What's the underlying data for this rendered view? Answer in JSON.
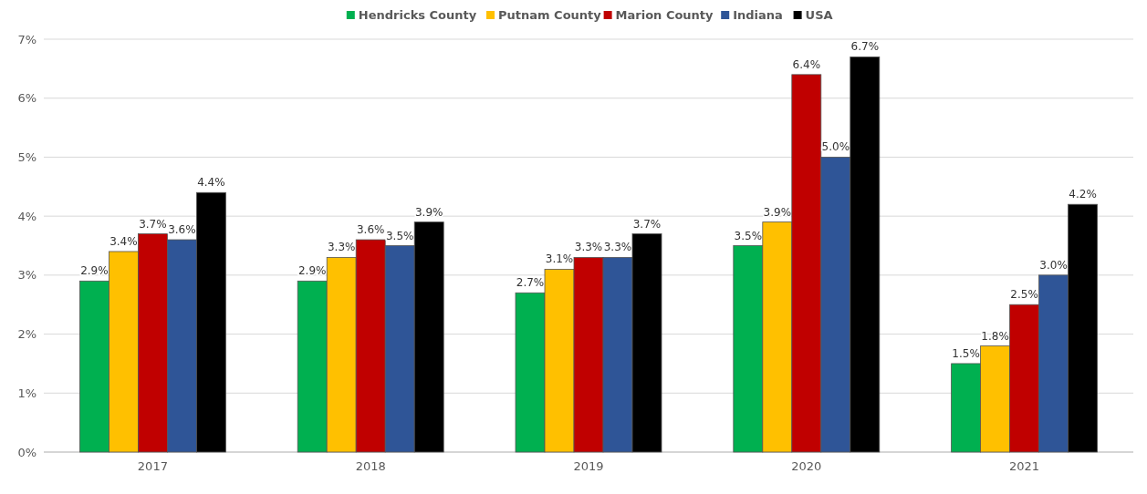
{
  "chart_data": {
    "type": "bar",
    "categories": [
      "2017",
      "2018",
      "2019",
      "2020",
      "2021"
    ],
    "series": [
      {
        "name": "Hendricks County",
        "color": "#00b050",
        "values": [
          2.9,
          2.9,
          2.7,
          3.5,
          1.5
        ],
        "value_labels": [
          "2.9%",
          "2.9%",
          "2.7%",
          "3.5%",
          "1.5%"
        ]
      },
      {
        "name": "Putnam County",
        "color": "#ffc000",
        "values": [
          3.4,
          3.3,
          3.1,
          3.9,
          1.8
        ],
        "value_labels": [
          "3.4%",
          "3.3%",
          "3.1%",
          "3.9%",
          "1.8%"
        ]
      },
      {
        "name": "Marion County",
        "color": "#c00000",
        "values": [
          3.7,
          3.6,
          3.3,
          6.4,
          2.5
        ],
        "value_labels": [
          "3.7%",
          "3.6%",
          "3.3%",
          "6.4%",
          "2.5%"
        ]
      },
      {
        "name": "Indiana",
        "color": "#2f5597",
        "values": [
          3.6,
          3.5,
          3.3,
          5.0,
          3.0
        ],
        "value_labels": [
          "3.6%",
          "3.5%",
          "3.3%",
          "5.0%",
          "3.0%"
        ]
      },
      {
        "name": "USA",
        "color": "#000000",
        "values": [
          4.4,
          3.9,
          3.7,
          6.7,
          4.2
        ],
        "value_labels": [
          "4.4%",
          "3.9%",
          "3.7%",
          "6.7%",
          "4.2%"
        ]
      }
    ],
    "ylim": [
      0,
      7
    ],
    "yticks": [
      {
        "value": 0,
        "label": "0%"
      },
      {
        "value": 1,
        "label": "1%"
      },
      {
        "value": 2,
        "label": "2%"
      },
      {
        "value": 3,
        "label": "3%"
      },
      {
        "value": 4,
        "label": "4%"
      },
      {
        "value": 5,
        "label": "5%"
      },
      {
        "value": 6,
        "label": "6%"
      },
      {
        "value": 7,
        "label": "7%"
      }
    ],
    "grid": "y",
    "legend": "top"
  }
}
